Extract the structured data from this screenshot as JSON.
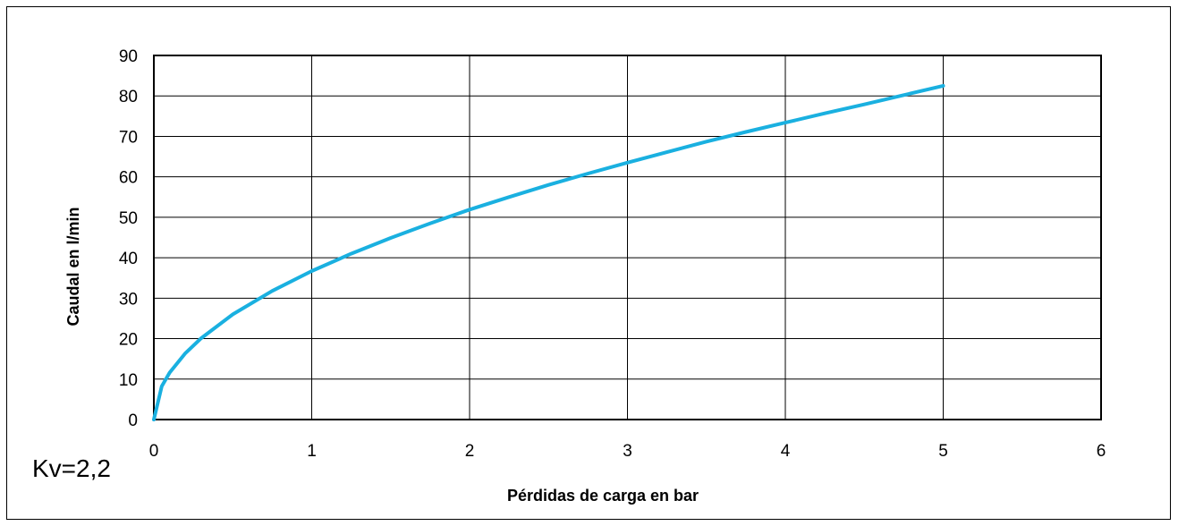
{
  "chart_data": {
    "type": "line",
    "xlabel": "Pérdidas de carga en bar",
    "ylabel": "Caudal en l/min",
    "xlim": [
      0,
      6
    ],
    "ylim": [
      0,
      90
    ],
    "x_ticks": [
      "0",
      "1",
      "2",
      "3",
      "4",
      "5",
      "6"
    ],
    "y_ticks": [
      "0",
      "10",
      "20",
      "30",
      "40",
      "50",
      "60",
      "70",
      "80",
      "90"
    ],
    "grid": true,
    "series_color": "#1ab0e0",
    "series": [
      {
        "x": [
          0,
          0.05,
          0.1,
          0.2,
          0.3,
          0.5,
          0.75,
          1,
          1.25,
          1.5,
          1.75,
          2,
          2.25,
          2.5,
          2.75,
          3,
          3.25,
          3.5,
          3.75,
          4,
          4.25,
          4.5,
          4.75,
          5
        ],
        "values": [
          0,
          8.2,
          11.6,
          16.4,
          20.1,
          26.0,
          31.8,
          36.7,
          41.0,
          44.9,
          48.5,
          51.9,
          55.0,
          58.0,
          60.8,
          63.5,
          66.1,
          68.7,
          71.1,
          73.4,
          75.7,
          77.9,
          80.2,
          82.5
        ]
      }
    ],
    "annotation": "Kv=2,2"
  }
}
